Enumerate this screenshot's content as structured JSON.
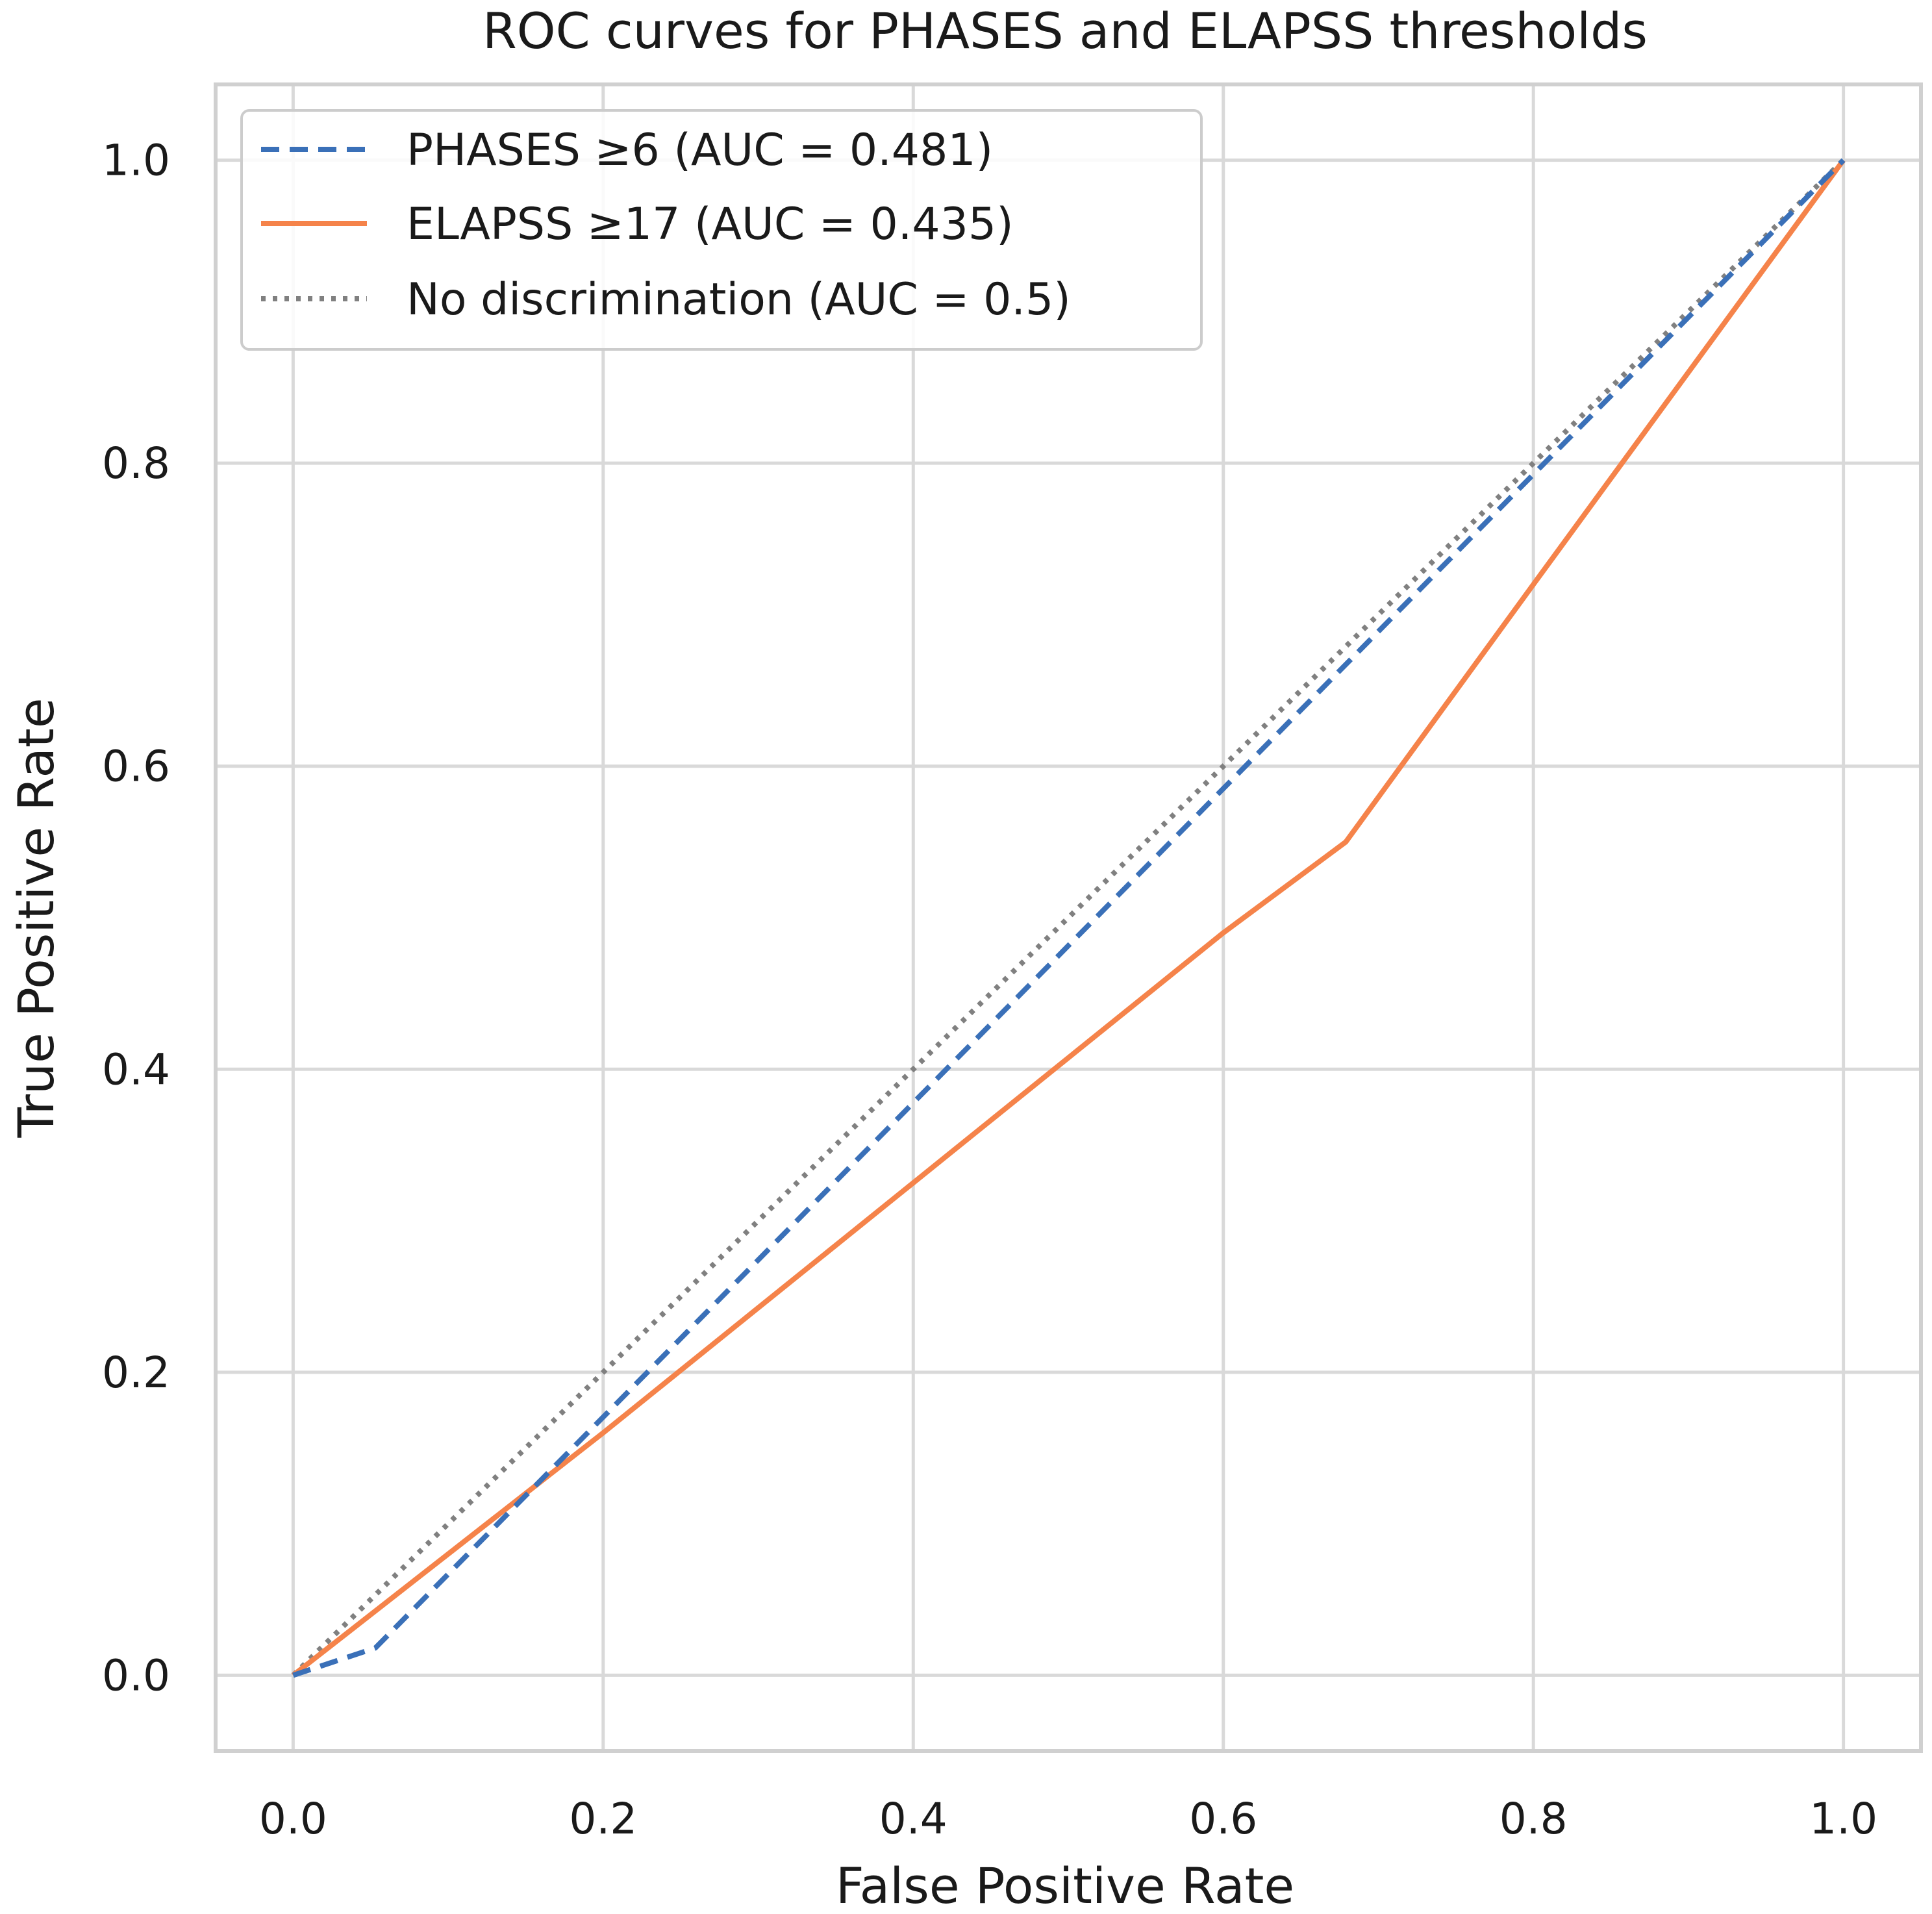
{
  "chart_data": {
    "type": "line",
    "title": "ROC curves for PHASES and ELAPSS thresholds",
    "xlabel": "False Positive Rate",
    "ylabel": "True Positive Rate",
    "xlim": [
      -0.05,
      1.05
    ],
    "ylim": [
      -0.05,
      1.05
    ],
    "xticks": [
      0.0,
      0.2,
      0.4,
      0.6,
      0.8,
      1.0
    ],
    "yticks": [
      0.0,
      0.2,
      0.4,
      0.6,
      0.8,
      1.0
    ],
    "xtick_labels": [
      "0.0",
      "0.2",
      "0.4",
      "0.6",
      "0.8",
      "1.0"
    ],
    "ytick_labels": [
      "0.0",
      "0.2",
      "0.4",
      "0.6",
      "0.8",
      "1.0"
    ],
    "grid": true,
    "legend_position": "top-left",
    "series": [
      {
        "name": "PHASES ≥6 (AUC = 0.481)",
        "style": "dashed",
        "color": "#3a70b8",
        "x": [
          0.0,
          0.053,
          1.0
        ],
        "y": [
          0.0,
          0.018,
          1.0
        ]
      },
      {
        "name": "ELAPSS ≥17 (AUC = 0.435)",
        "style": "solid",
        "color": "#f5834a",
        "x": [
          0.0,
          0.2,
          0.4,
          0.6,
          0.679,
          0.8,
          1.0
        ],
        "y": [
          0.0,
          0.16,
          0.325,
          0.49,
          0.55,
          0.72,
          1.0
        ]
      },
      {
        "name": "No discrimination (AUC = 0.5)",
        "style": "dotted",
        "color": "#808080",
        "x": [
          0.0,
          1.0
        ],
        "y": [
          0.0,
          1.0
        ]
      }
    ]
  }
}
